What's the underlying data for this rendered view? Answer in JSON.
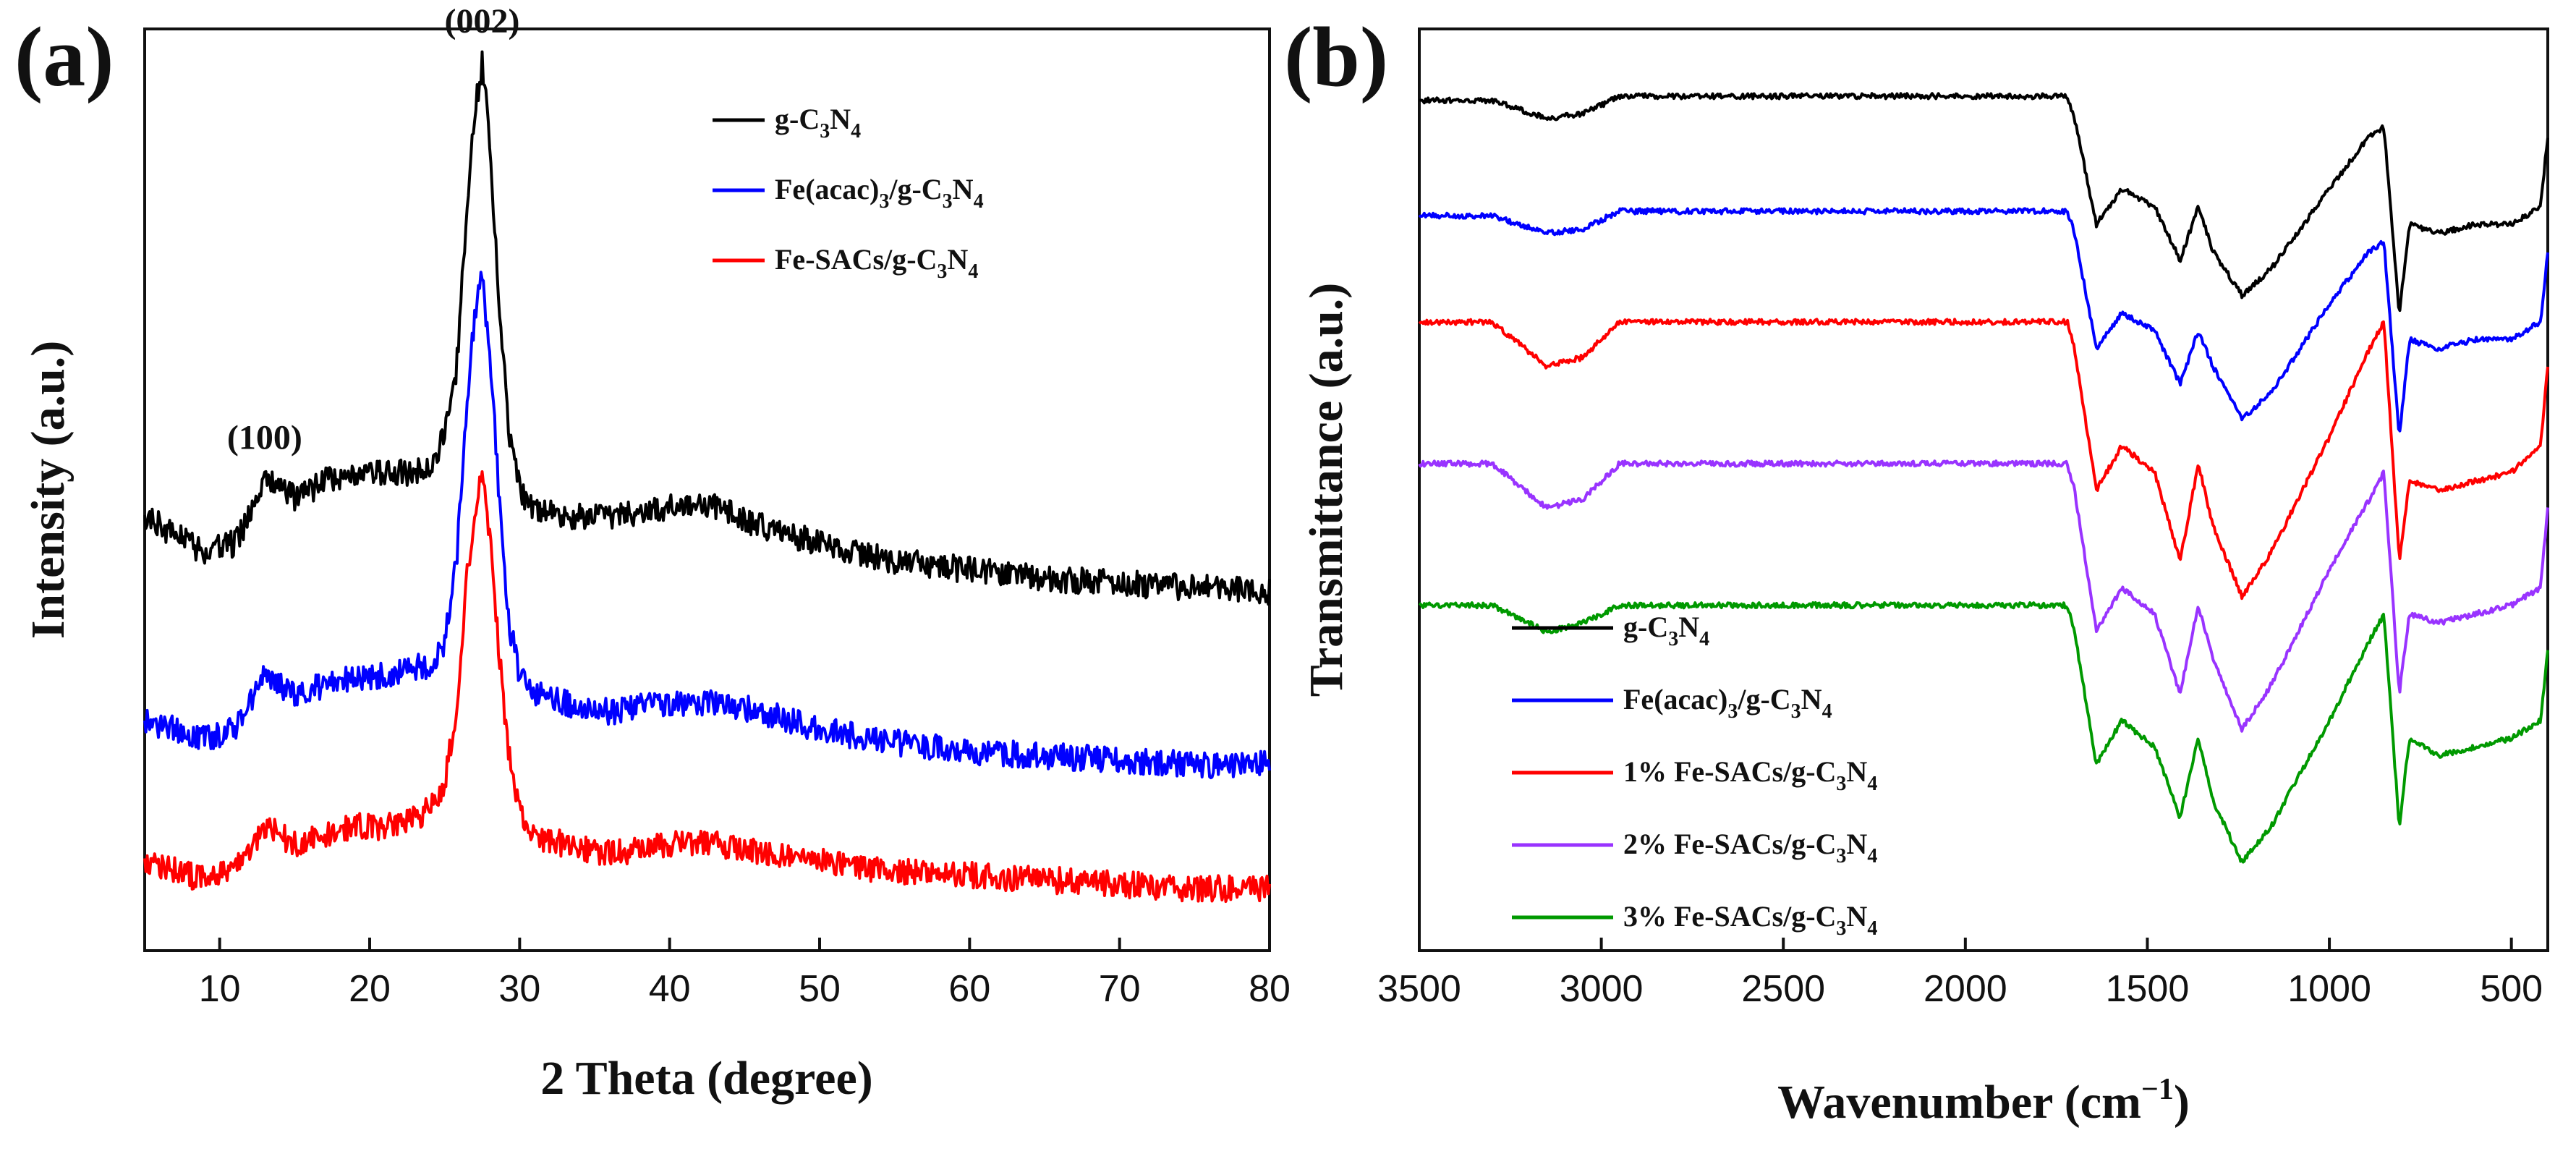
{
  "chart_data": [
    {
      "panel": "(a)",
      "type": "line",
      "title": "",
      "xlabel": "2 Theta (degree)",
      "ylabel": "Intensity (a.u.)",
      "xlim": [
        5,
        80
      ],
      "ylim": [
        0,
        1
      ],
      "xticks": [
        10,
        20,
        30,
        40,
        50,
        60,
        70,
        80
      ],
      "grid": false,
      "legend_position": "top-right",
      "annotations": [
        {
          "text": "(100)",
          "x": 13
        },
        {
          "text": "(002)",
          "x": 27.5
        }
      ],
      "series": [
        {
          "name": "g-C3N4",
          "legend": {
            "base": "g-C",
            "s1": "3",
            "mid": "N",
            "s2": "4",
            "tail": ""
          },
          "color": "#000000",
          "x": [
            5,
            7,
            9,
            11,
            12,
            13,
            14,
            15,
            17,
            19,
            21,
            23,
            24,
            25,
            25.8,
            26.4,
            27,
            27.5,
            28,
            28.6,
            29.3,
            30,
            31,
            33,
            36,
            40,
            43,
            46,
            50,
            55,
            60,
            65,
            70,
            75,
            80
          ],
          "y": [
            0.49,
            0.47,
            0.45,
            0.46,
            0.49,
            0.53,
            0.53,
            0.51,
            0.53,
            0.54,
            0.54,
            0.54,
            0.55,
            0.58,
            0.66,
            0.82,
            0.95,
            1.0,
            0.92,
            0.74,
            0.58,
            0.52,
            0.5,
            0.49,
            0.49,
            0.5,
            0.5,
            0.48,
            0.46,
            0.44,
            0.43,
            0.42,
            0.415,
            0.41,
            0.405
          ]
        },
        {
          "name": "Fe(acac)3/g-C3N4",
          "legend": {
            "base": "Fe(acac)",
            "s1": "3",
            "mid": "/g-C",
            "s2": "3",
            "tail": "N",
            "s3": "4"
          },
          "color": "#0000ff",
          "x": [
            5,
            7,
            9,
            11,
            12,
            13,
            14,
            15,
            17,
            19,
            21,
            23,
            24,
            25,
            25.8,
            26.4,
            27,
            27.5,
            28,
            28.6,
            29.3,
            30,
            31,
            33,
            36,
            40,
            43,
            46,
            50,
            55,
            60,
            65,
            70,
            75,
            80
          ],
          "y": [
            0.26,
            0.25,
            0.24,
            0.25,
            0.28,
            0.31,
            0.3,
            0.29,
            0.3,
            0.31,
            0.31,
            0.32,
            0.32,
            0.35,
            0.44,
            0.6,
            0.72,
            0.76,
            0.68,
            0.52,
            0.37,
            0.31,
            0.29,
            0.28,
            0.27,
            0.28,
            0.28,
            0.27,
            0.25,
            0.235,
            0.225,
            0.22,
            0.215,
            0.21,
            0.21
          ]
        },
        {
          "name": "Fe-SACs/g-C3N4",
          "legend": {
            "base": "Fe-SACs/g-C",
            "s1": "3",
            "mid": "N",
            "s2": "4",
            "tail": ""
          },
          "color": "#ff0000",
          "x": [
            5,
            7,
            9,
            11,
            12,
            13,
            14,
            15,
            17,
            19,
            21,
            23,
            24,
            25,
            25.8,
            26.4,
            27,
            27.5,
            28,
            28.6,
            29.3,
            30,
            31,
            33,
            36,
            40,
            43,
            46,
            50,
            55,
            60,
            65,
            70,
            75,
            80
          ],
          "y": [
            0.1,
            0.09,
            0.08,
            0.09,
            0.11,
            0.14,
            0.13,
            0.12,
            0.13,
            0.14,
            0.14,
            0.15,
            0.16,
            0.19,
            0.27,
            0.41,
            0.5,
            0.53,
            0.47,
            0.34,
            0.22,
            0.16,
            0.13,
            0.12,
            0.11,
            0.12,
            0.12,
            0.11,
            0.1,
            0.09,
            0.085,
            0.08,
            0.075,
            0.07,
            0.07
          ]
        }
      ]
    },
    {
      "panel": "(b)",
      "type": "line",
      "title": "",
      "xlabel": "Wavenumber (cm",
      "xlabel_sup": "−1",
      "xlabel_close": ")",
      "ylabel": "Transmittance (a.u.)",
      "xlim": [
        3500,
        400
      ],
      "ylim": [
        0,
        1
      ],
      "xticks": [
        3500,
        3000,
        2500,
        2000,
        1500,
        1000,
        500
      ],
      "grid": false,
      "legend_position": "bottom-left",
      "series": [
        {
          "name": "g-C3N4",
          "legend": {
            "base": "g-C",
            "s1": "3",
            "mid": "N",
            "s2": "4",
            "tail": ""
          },
          "color": "#000000",
          "x": [
            3500,
            3300,
            3150,
            3050,
            2950,
            2500,
            2000,
            1720,
            1700,
            1640,
            1570,
            1480,
            1410,
            1360,
            1320,
            1240,
            1160,
            1000,
            890,
            850,
            808,
            780,
            700,
            600,
            500,
            420,
            400
          ],
          "y": [
            0.96,
            0.96,
            0.94,
            0.945,
            0.965,
            0.965,
            0.965,
            0.965,
            0.94,
            0.82,
            0.86,
            0.84,
            0.78,
            0.84,
            0.79,
            0.74,
            0.77,
            0.86,
            0.92,
            0.93,
            0.72,
            0.82,
            0.81,
            0.82,
            0.82,
            0.84,
            0.92
          ]
        },
        {
          "name": "Fe(acac)3/g-C3N4",
          "legend": {
            "base": "Fe(acac)",
            "s1": "3",
            "mid": "/g-C",
            "s2": "3",
            "tail": "N",
            "s3": "4"
          },
          "color": "#0000ff",
          "x": [
            3500,
            3300,
            3150,
            3050,
            2950,
            2500,
            2000,
            1720,
            1700,
            1640,
            1570,
            1480,
            1410,
            1360,
            1320,
            1240,
            1160,
            1000,
            890,
            850,
            808,
            780,
            700,
            600,
            500,
            420,
            400
          ],
          "y": [
            0.83,
            0.83,
            0.81,
            0.815,
            0.835,
            0.835,
            0.835,
            0.835,
            0.81,
            0.68,
            0.72,
            0.7,
            0.64,
            0.7,
            0.66,
            0.6,
            0.63,
            0.73,
            0.79,
            0.8,
            0.58,
            0.69,
            0.68,
            0.69,
            0.69,
            0.71,
            0.79
          ]
        },
        {
          "name": "1% Fe-SACs/g-C3N4",
          "legend": {
            "base": "1% Fe-SACs/g-C",
            "s1": "3",
            "mid": "N",
            "s2": "4",
            "tail": ""
          },
          "color": "#ff0000",
          "x": [
            3500,
            3300,
            3150,
            3050,
            2950,
            2500,
            2000,
            1720,
            1700,
            1640,
            1570,
            1480,
            1410,
            1360,
            1320,
            1240,
            1160,
            1000,
            890,
            850,
            808,
            780,
            700,
            600,
            500,
            420,
            400
          ],
          "y": [
            0.71,
            0.71,
            0.66,
            0.67,
            0.71,
            0.71,
            0.71,
            0.71,
            0.68,
            0.52,
            0.57,
            0.54,
            0.44,
            0.55,
            0.48,
            0.4,
            0.45,
            0.58,
            0.68,
            0.71,
            0.44,
            0.53,
            0.52,
            0.53,
            0.54,
            0.57,
            0.66
          ]
        },
        {
          "name": "2% Fe-SACs/g-C3N4",
          "legend": {
            "base": "2% Fe-SACs/g-C",
            "s1": "3",
            "mid": "N",
            "s2": "4",
            "tail": ""
          },
          "color": "#9933ff",
          "x": [
            3500,
            3300,
            3150,
            3050,
            2950,
            2500,
            2000,
            1720,
            1700,
            1640,
            1570,
            1480,
            1410,
            1360,
            1320,
            1240,
            1160,
            1000,
            890,
            850,
            808,
            780,
            700,
            600,
            500,
            420,
            400
          ],
          "y": [
            0.55,
            0.55,
            0.5,
            0.51,
            0.55,
            0.55,
            0.55,
            0.55,
            0.52,
            0.36,
            0.41,
            0.38,
            0.29,
            0.39,
            0.33,
            0.25,
            0.3,
            0.43,
            0.51,
            0.54,
            0.29,
            0.38,
            0.37,
            0.38,
            0.39,
            0.41,
            0.5
          ]
        },
        {
          "name": "3% Fe-SACs/g-C3N4",
          "legend": {
            "base": "3% Fe-SACs/g-C",
            "s1": "3",
            "mid": "N",
            "s2": "4",
            "tail": ""
          },
          "color": "#009900",
          "x": [
            3500,
            3300,
            3150,
            3050,
            2950,
            2500,
            2000,
            1720,
            1700,
            1640,
            1570,
            1480,
            1410,
            1360,
            1320,
            1240,
            1160,
            1000,
            890,
            850,
            808,
            780,
            700,
            600,
            500,
            420,
            400
          ],
          "y": [
            0.39,
            0.39,
            0.36,
            0.37,
            0.39,
            0.39,
            0.39,
            0.39,
            0.36,
            0.21,
            0.26,
            0.23,
            0.15,
            0.24,
            0.17,
            0.1,
            0.14,
            0.26,
            0.35,
            0.38,
            0.14,
            0.24,
            0.22,
            0.23,
            0.24,
            0.26,
            0.34
          ]
        }
      ]
    }
  ]
}
